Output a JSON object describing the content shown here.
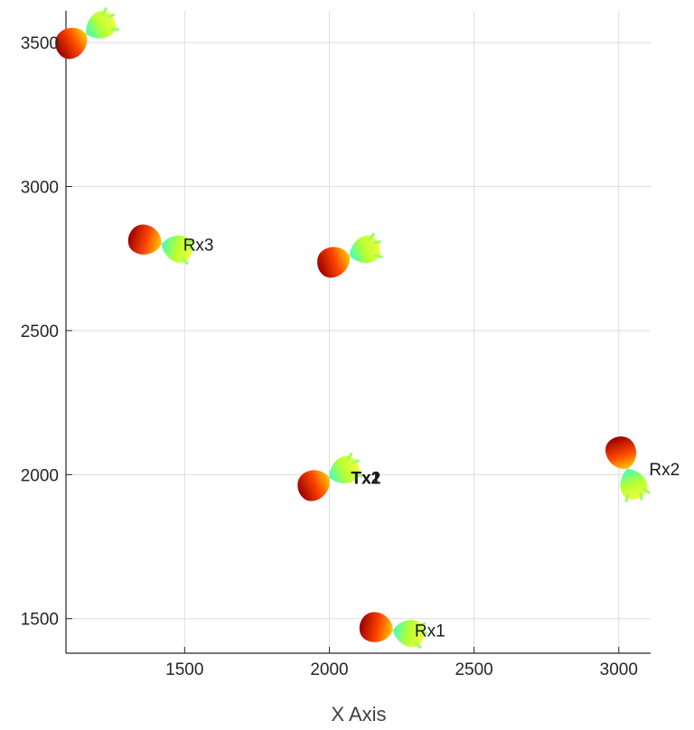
{
  "chart_data": {
    "type": "scatter",
    "xlabel": "X Axis",
    "ylabel": "",
    "xlim": [
      1090,
      3110
    ],
    "ylim": [
      1380,
      3610
    ],
    "grid": true,
    "xticks": [
      1500,
      2000,
      2500,
      3000
    ],
    "yticks": [
      1500,
      2000,
      2500,
      3000,
      3500
    ],
    "xtick_labels": [
      "1500",
      "2000",
      "2500",
      "3000"
    ],
    "ytick_labels": [
      "1500",
      "2000",
      "2500",
      "3000",
      "3500"
    ],
    "series": [
      {
        "points": [
          {
            "label": "",
            "x": 1160,
            "y": 3530,
            "angle": 60
          },
          {
            "label": "Rx3",
            "x": 1420,
            "y": 2800,
            "angle": 105
          },
          {
            "label": "",
            "x": 2070,
            "y": 2760,
            "angle": 70
          },
          {
            "label": "Tx2",
            "x": 2000,
            "y": 1990,
            "angle": 65
          },
          {
            "label": "Tx1",
            "x": 2000,
            "y": 1990,
            "angle": 65
          },
          {
            "label": "Rx2",
            "x": 3030,
            "y": 2020,
            "angle": 160
          },
          {
            "label": "Rx1",
            "x": 2220,
            "y": 1460,
            "angle": 100
          }
        ]
      }
    ]
  }
}
